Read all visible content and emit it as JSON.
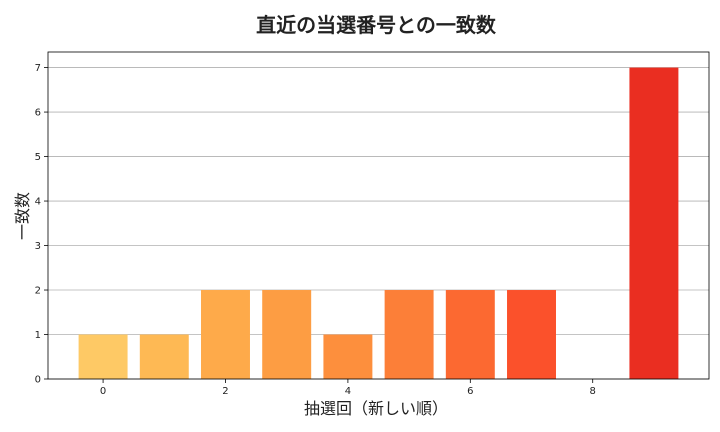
{
  "chart_data": {
    "type": "bar",
    "title": "直近の当選番号との一致数",
    "xlabel": "抽選回（新しい順）",
    "ylabel": "一致数",
    "x": [
      0,
      1,
      2,
      3,
      4,
      5,
      6,
      7,
      8,
      9
    ],
    "values": [
      1,
      1,
      2,
      2,
      1,
      2,
      2,
      2,
      0,
      7
    ],
    "colors": [
      "#fec965",
      "#feb954",
      "#feaa4a",
      "#fd9d43",
      "#fd8f3d",
      "#fc7f38",
      "#fc6931",
      "#fb512b",
      "#f23c26",
      "#ea2e21"
    ],
    "xticks": [
      0,
      2,
      4,
      6,
      8
    ],
    "yticks": [
      0,
      1,
      2,
      3,
      4,
      5,
      6,
      7
    ],
    "xlim": [
      -0.9,
      9.9
    ],
    "ylim": [
      0,
      7.35
    ],
    "grid": "y"
  }
}
